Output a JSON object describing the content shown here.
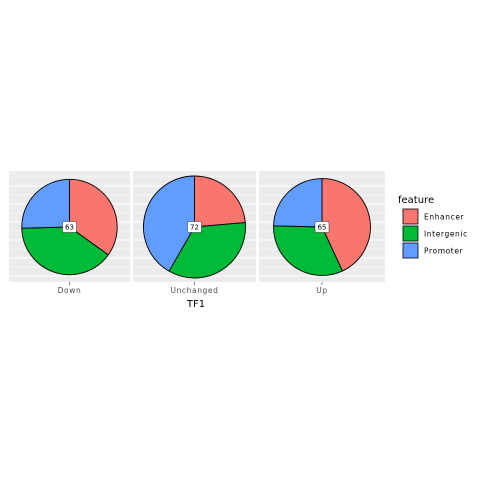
{
  "chart_data": {
    "type": "pie",
    "xlabel": "TF1",
    "legend": {
      "title": "feature",
      "position": "right",
      "entries": [
        {
          "label": "Enhancer",
          "color": "#F8766D"
        },
        {
          "label": "Intergenic",
          "color": "#00BA38"
        },
        {
          "label": "Promoter",
          "color": "#619CFF"
        }
      ]
    },
    "categories": [
      "Down",
      "Unchanged",
      "Up"
    ],
    "panels": [
      {
        "category": "Down",
        "total": 63,
        "values": {
          "Enhancer": 22,
          "Intergenic": 25,
          "Promoter": 16
        }
      },
      {
        "category": "Unchanged",
        "total": 72,
        "values": {
          "Enhancer": 17,
          "Intergenic": 25,
          "Promoter": 30
        }
      },
      {
        "category": "Up",
        "total": 65,
        "values": {
          "Enhancer": 28,
          "Intergenic": 21,
          "Promoter": 16
        }
      }
    ],
    "grid": true,
    "panel_background": "#EBEBEB"
  }
}
